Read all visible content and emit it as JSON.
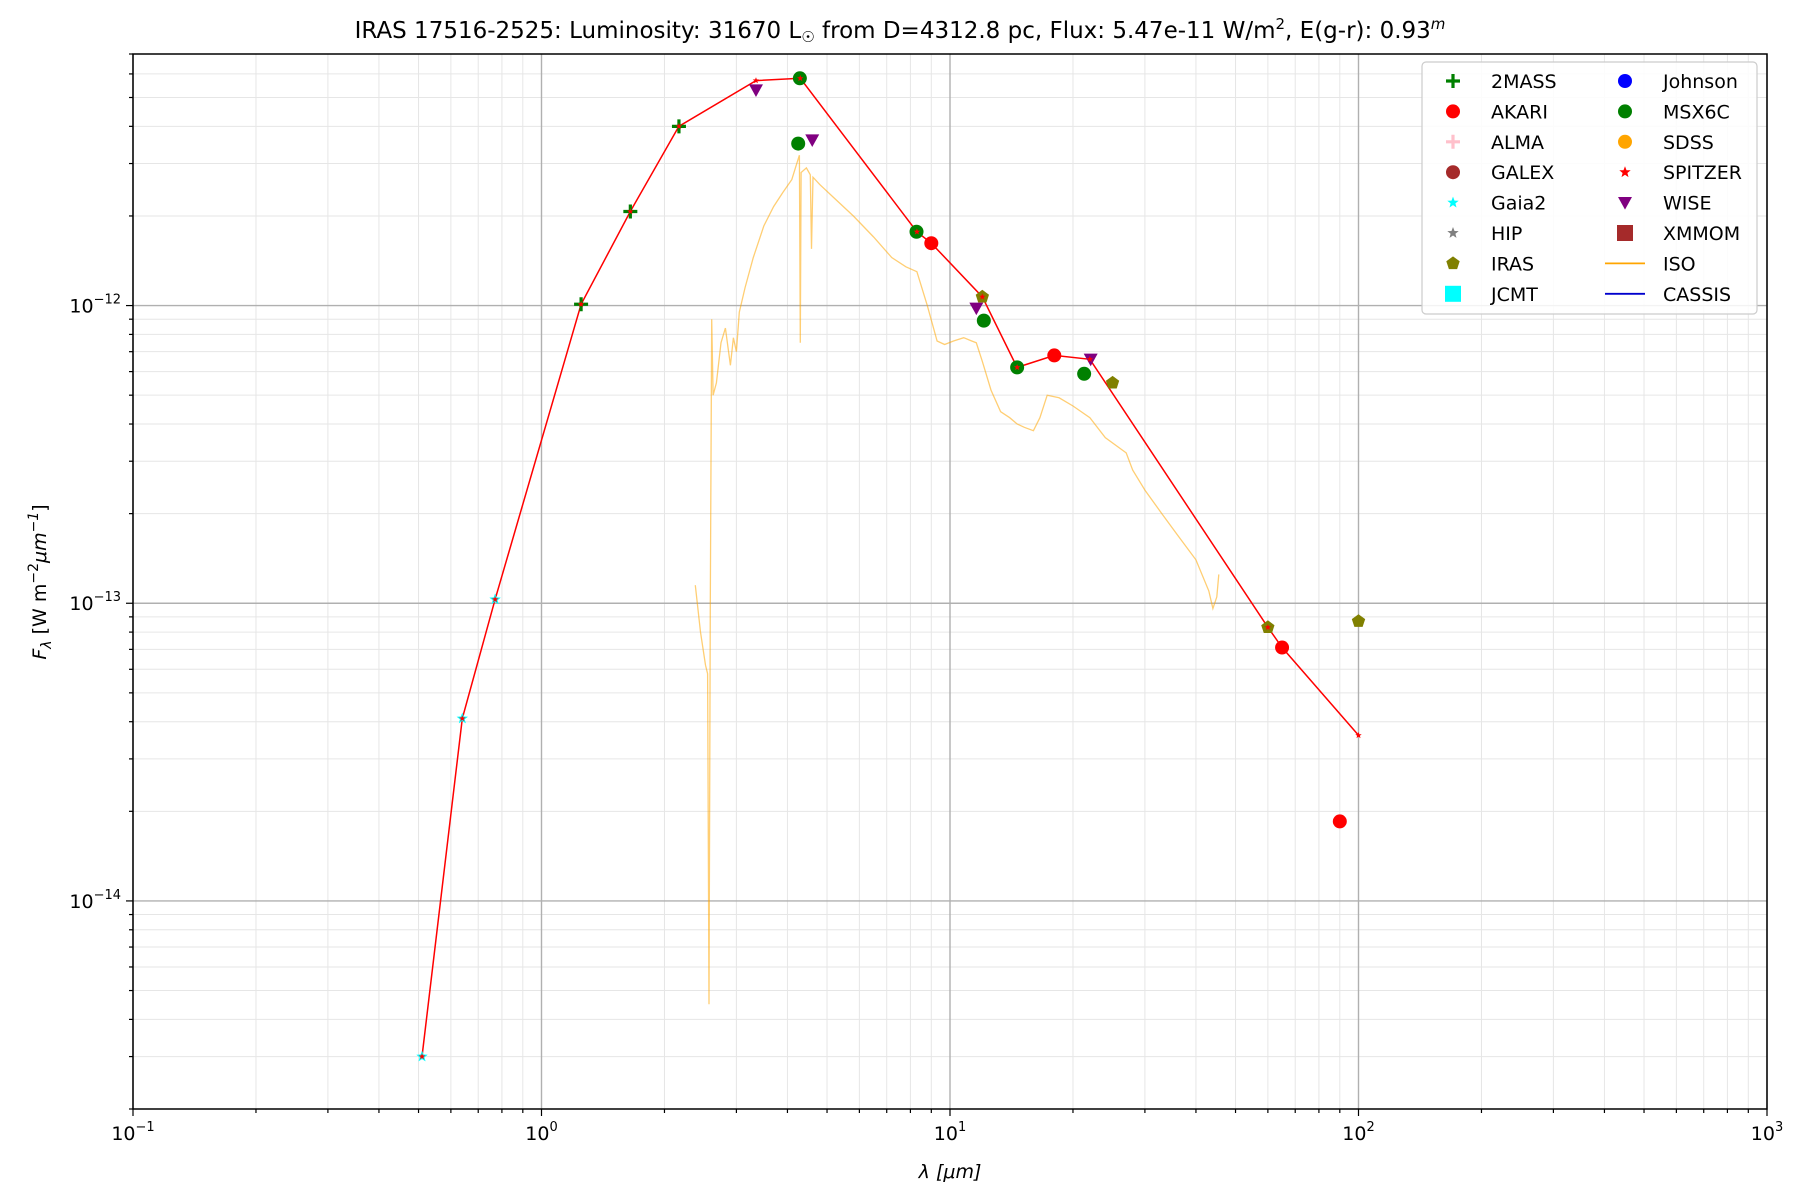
{
  "chart_data": {
    "type": "scatter",
    "title": {
      "object": "IRAS 17516-2525:",
      "luminosity": "Luminosity: 31670 L",
      "sun_symbol": "☉",
      "distance": "from D=4312.8 pc, Flux: 5.47e-11 W/m",
      "flux_exp": "2",
      "reddening": ", E(g-r): 0.93",
      "reddening_sup": "m"
    },
    "xlabel": {
      "symbol": "λ",
      "unit": "[μm]"
    },
    "ylabel": {
      "prefix": "F",
      "sub": "λ",
      "unit_a": "[W m",
      "exp_a": "−2",
      "unit_b": "μm",
      "exp_b": "−1",
      "close": "]"
    },
    "x_scale": "log",
    "y_scale": "log",
    "xlim": [
      0.1,
      1000
    ],
    "ylim": [
      2e-15,
      7e-12
    ],
    "grid": true,
    "legend_position": "top-right",
    "x_ticks": [
      {
        "value": 0.1,
        "base": "10",
        "exp": "−1"
      },
      {
        "value": 1,
        "base": "10",
        "exp": "0"
      },
      {
        "value": 10,
        "base": "10",
        "exp": "1"
      },
      {
        "value": 100,
        "base": "10",
        "exp": "2"
      },
      {
        "value": 1000,
        "base": "10",
        "exp": "3"
      }
    ],
    "y_ticks": [
      {
        "value": 1e-14,
        "base": "10",
        "exp": "−14"
      },
      {
        "value": 1e-13,
        "base": "10",
        "exp": "−13"
      },
      {
        "value": 1e-12,
        "base": "10",
        "exp": "−12"
      }
    ],
    "legend": [
      {
        "label": "2MASS",
        "marker": "plus",
        "color": "#008000"
      },
      {
        "label": "Johnson",
        "marker": "circle",
        "color": "#0000ff"
      },
      {
        "label": "AKARI",
        "marker": "circle",
        "color": "#ff0000"
      },
      {
        "label": "MSX6C",
        "marker": "circle",
        "color": "#008000"
      },
      {
        "label": "ALMA",
        "marker": "plus",
        "color": "#ffc0cb"
      },
      {
        "label": "SDSS",
        "marker": "circle",
        "color": "#ffa500"
      },
      {
        "label": "GALEX",
        "marker": "circle",
        "color": "#a52a2a"
      },
      {
        "label": "SPITZER",
        "marker": "star",
        "color": "#ff0000"
      },
      {
        "label": "Gaia2",
        "marker": "star",
        "color": "#00ffff"
      },
      {
        "label": "WISE",
        "marker": "triangle-down",
        "color": "#800080"
      },
      {
        "label": "HIP",
        "marker": "star",
        "color": "#808080"
      },
      {
        "label": "XMMOM",
        "marker": "square",
        "color": "#a52a2a"
      },
      {
        "label": "IRAS",
        "marker": "pentagon",
        "color": "#808000"
      },
      {
        "label": "ISO",
        "marker": "line",
        "color": "#ffa500"
      },
      {
        "label": "JCMT",
        "marker": "square",
        "color": "#00ffff"
      },
      {
        "label": "CASSIS",
        "marker": "line",
        "color": "#0000cd"
      }
    ],
    "sed_line": {
      "color": "#ff0000",
      "points": [
        [
          0.51,
          3e-15
        ],
        [
          0.64,
          4.1e-14
        ],
        [
          0.77,
          1.03e-13
        ],
        [
          1.25,
          1.01e-12
        ],
        [
          1.65,
          2.07e-12
        ],
        [
          2.17,
          4e-12
        ],
        [
          3.35,
          5.7e-12
        ],
        [
          4.3,
          5.8e-12
        ],
        [
          8.3,
          1.77e-12
        ],
        [
          9.0,
          1.62e-12
        ],
        [
          12.0,
          1.07e-12
        ],
        [
          14.6,
          6.2e-13
        ],
        [
          18.0,
          6.8e-13
        ],
        [
          22.0,
          6.6e-13
        ],
        [
          60.0,
          8.3e-14
        ],
        [
          65.0,
          7.1e-14
        ],
        [
          100.0,
          3.6e-14
        ]
      ]
    },
    "photometry": [
      {
        "name": "2MASS",
        "marker": "plus",
        "color": "#008000",
        "points": [
          [
            1.25,
            1.01e-12
          ],
          [
            1.65,
            2.07e-12
          ],
          [
            2.17,
            4e-12
          ]
        ]
      },
      {
        "name": "Gaia2",
        "marker": "star",
        "color": "#00ffff",
        "points": [
          [
            0.51,
            3e-15
          ],
          [
            0.64,
            4.1e-14
          ],
          [
            0.77,
            1.03e-13
          ]
        ]
      },
      {
        "name": "WISE",
        "marker": "triangle-down",
        "color": "#800080",
        "points": [
          [
            3.35,
            5.3e-12
          ],
          [
            4.6,
            3.6e-12
          ],
          [
            11.6,
            9.8e-13
          ],
          [
            22.1,
            6.6e-13
          ]
        ]
      },
      {
        "name": "MSX6C",
        "marker": "circle",
        "color": "#008000",
        "points": [
          [
            4.29,
            5.8e-12
          ],
          [
            4.25,
            3.5e-12
          ],
          [
            8.28,
            1.77e-12
          ],
          [
            12.1,
            8.9e-13
          ],
          [
            14.6,
            6.2e-13
          ],
          [
            21.3,
            5.9e-13
          ]
        ]
      },
      {
        "name": "AKARI",
        "marker": "circle",
        "color": "#ff0000",
        "points": [
          [
            9.0,
            1.62e-12
          ],
          [
            18.0,
            6.8e-13
          ],
          [
            65.0,
            7.1e-14
          ],
          [
            90.0,
            1.85e-14
          ]
        ]
      },
      {
        "name": "IRAS",
        "marker": "pentagon",
        "color": "#808000",
        "points": [
          [
            12.0,
            1.07e-12
          ],
          [
            25.0,
            5.5e-13
          ],
          [
            60.0,
            8.3e-14
          ],
          [
            100.0,
            8.7e-14
          ]
        ]
      },
      {
        "name": "SPITZER",
        "marker": "star",
        "color": "#ff0000",
        "points": [
          [
            0.51,
            3e-15
          ],
          [
            0.64,
            4.1e-14
          ],
          [
            0.77,
            1.03e-13
          ],
          [
            1.25,
            1.01e-12
          ],
          [
            1.65,
            2.07e-12
          ],
          [
            2.17,
            4e-12
          ],
          [
            3.35,
            5.7e-12
          ],
          [
            4.3,
            5.8e-12
          ],
          [
            8.3,
            1.77e-12
          ],
          [
            9.0,
            1.62e-12
          ],
          [
            12.0,
            1.07e-12
          ],
          [
            14.6,
            6.2e-13
          ],
          [
            18.0,
            6.8e-13
          ],
          [
            22.0,
            6.6e-13
          ],
          [
            60.0,
            8.3e-14
          ],
          [
            65.0,
            7.1e-14
          ],
          [
            100.0,
            3.6e-14
          ]
        ]
      }
    ],
    "iso_spectrum": {
      "name": "ISO",
      "color": "#ffa500",
      "points": [
        [
          2.38,
          1.15e-13
        ],
        [
          2.45,
          8e-14
        ],
        [
          2.52,
          6.2e-14
        ],
        [
          2.55,
          5.8e-14
        ],
        [
          2.57,
          4.5e-15
        ],
        [
          2.59,
          1e-13
        ],
        [
          2.61,
          9e-13
        ],
        [
          2.63,
          5e-13
        ],
        [
          2.68,
          5.5e-13
        ],
        [
          2.75,
          7.5e-13
        ],
        [
          2.82,
          8.4e-13
        ],
        [
          2.9,
          6.3e-13
        ],
        [
          2.95,
          7.8e-13
        ],
        [
          3.0,
          7e-13
        ],
        [
          3.05,
          9.5e-13
        ],
        [
          3.15,
          1.15e-12
        ],
        [
          3.3,
          1.45e-12
        ],
        [
          3.5,
          1.85e-12
        ],
        [
          3.7,
          2.15e-12
        ],
        [
          3.9,
          2.4e-12
        ],
        [
          4.1,
          2.65e-12
        ],
        [
          4.2,
          2.95e-12
        ],
        [
          4.28,
          3.2e-12
        ],
        [
          4.3,
          7.5e-13
        ],
        [
          4.32,
          2.8e-12
        ],
        [
          4.45,
          2.9e-12
        ],
        [
          4.55,
          2.75e-12
        ],
        [
          4.58,
          1.55e-12
        ],
        [
          4.62,
          2.7e-12
        ],
        [
          4.8,
          2.55e-12
        ],
        [
          5.2,
          2.3e-12
        ],
        [
          5.8,
          2e-12
        ],
        [
          6.5,
          1.7e-12
        ],
        [
          7.2,
          1.45e-12
        ],
        [
          7.8,
          1.35e-12
        ],
        [
          8.3,
          1.3e-12
        ],
        [
          8.8,
          1e-12
        ],
        [
          9.3,
          7.6e-13
        ],
        [
          9.7,
          7.4e-13
        ],
        [
          10.2,
          7.6e-13
        ],
        [
          10.8,
          7.8e-13
        ],
        [
          11.3,
          7.6e-13
        ],
        [
          11.6,
          7.5e-13
        ],
        [
          12.0,
          6.5e-13
        ],
        [
          12.6,
          5.2e-13
        ],
        [
          13.3,
          4.4e-13
        ],
        [
          14.0,
          4.2e-13
        ],
        [
          14.6,
          4e-13
        ],
        [
          15.2,
          3.9e-13
        ],
        [
          16.0,
          3.8e-13
        ],
        [
          16.6,
          4.2e-13
        ],
        [
          17.3,
          5e-13
        ],
        [
          18.5,
          4.9e-13
        ],
        [
          20.0,
          4.6e-13
        ],
        [
          22.0,
          4.2e-13
        ],
        [
          24.0,
          3.6e-13
        ],
        [
          27.0,
          3.2e-13
        ],
        [
          28.0,
          2.8e-13
        ],
        [
          30.0,
          2.4e-13
        ],
        [
          33.0,
          2e-13
        ],
        [
          36.0,
          1.7e-13
        ],
        [
          40.0,
          1.4e-13
        ],
        [
          43.0,
          1.1e-13
        ],
        [
          44.0,
          9.6e-14
        ],
        [
          45.0,
          1.05e-13
        ],
        [
          45.5,
          1.25e-13
        ]
      ]
    }
  }
}
